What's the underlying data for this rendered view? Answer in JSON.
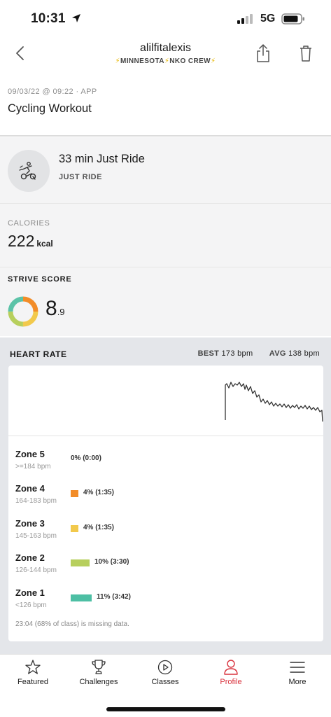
{
  "status_bar": {
    "time": "10:31",
    "network": "5G"
  },
  "header": {
    "username": "alilfitalexis",
    "subtitle_parts": [
      "⚡",
      "MINNESOTA",
      "⚡",
      "NKO CREW",
      "⚡"
    ]
  },
  "workout": {
    "meta": "09/03/22 @ 09:22 · APP",
    "title": "Cycling Workout"
  },
  "class_info": {
    "name": "33 min Just Ride",
    "type": "JUST RIDE",
    "icon": "cycling-icon"
  },
  "calories": {
    "label": "CALORIES",
    "value": "222",
    "unit": "kcal"
  },
  "strive": {
    "label": "STRIVE SCORE",
    "score_int": "8",
    "score_dec": ".9",
    "donut_colors": [
      "#f28c28",
      "#f2c94c",
      "#b7cf5d",
      "#5cc3a8"
    ]
  },
  "heart_rate": {
    "label": "HEART RATE",
    "best_label": "BEST",
    "best_value": "173 bpm",
    "avg_label": "AVG",
    "avg_value": "138 bpm",
    "zones": [
      {
        "name": "Zone 5",
        "range": ">=184 bpm",
        "value": "0% (0:00)",
        "fraction": 0.0,
        "color": "#e5484d"
      },
      {
        "name": "Zone 4",
        "range": "164-183 bpm",
        "value": "4% (1:35)",
        "fraction": 0.04,
        "color": "#f28c28"
      },
      {
        "name": "Zone 3",
        "range": "145-163 bpm",
        "value": "4% (1:35)",
        "fraction": 0.04,
        "color": "#f2c94c"
      },
      {
        "name": "Zone 2",
        "range": "126-144 bpm",
        "value": "10% (3:30)",
        "fraction": 0.1,
        "color": "#b7cf5d"
      },
      {
        "name": "Zone 1",
        "range": "<126 bpm",
        "value": "11% (3:42)",
        "fraction": 0.11,
        "color": "#4dbfa4"
      }
    ],
    "missing_note": "23:04 (68% of class) is missing data."
  },
  "nav": {
    "items": [
      {
        "label": "Featured",
        "icon": "star-icon"
      },
      {
        "label": "Challenges",
        "icon": "trophy-icon"
      },
      {
        "label": "Classes",
        "icon": "play-circle-icon"
      },
      {
        "label": "Profile",
        "icon": "person-icon"
      },
      {
        "label": "More",
        "icon": "menu-icon"
      }
    ],
    "active": "Profile",
    "active_color": "#d9323d"
  }
}
